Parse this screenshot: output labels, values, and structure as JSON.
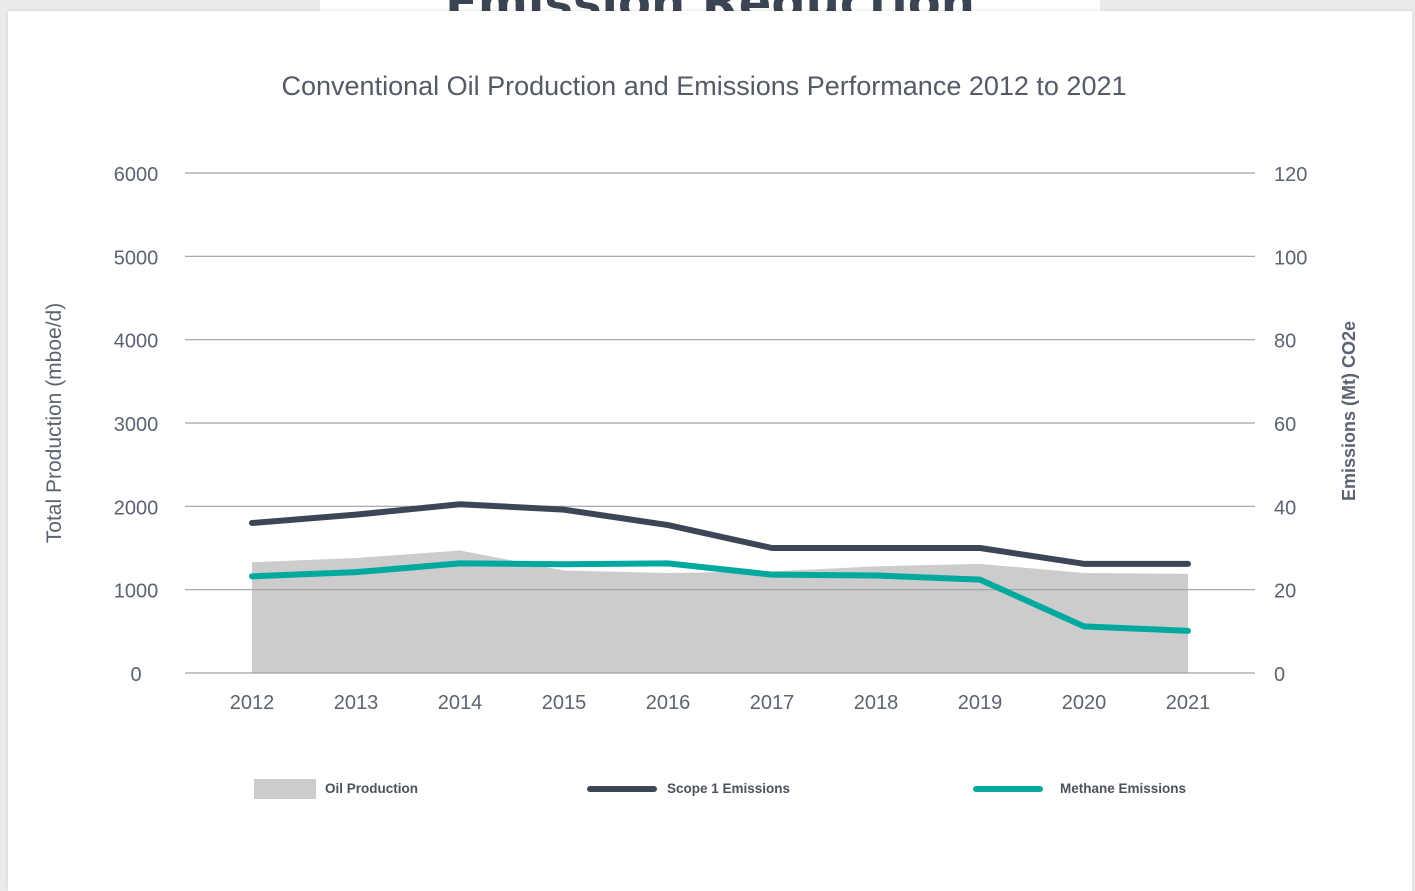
{
  "page": {
    "heading": "Emission Reduction"
  },
  "chart_data": {
    "type": "area",
    "title": "Conventional Oil Production and Emissions Performance 2012 to 2021",
    "ylabel": "Total Production (mboe/d)",
    "y2label": "Emissions (Mt) CO2e",
    "categories": [
      "2012",
      "2013",
      "2014",
      "2015",
      "2016",
      "2017",
      "2018",
      "2019",
      "2020",
      "2021"
    ],
    "ylim": [
      0,
      6000
    ],
    "y2lim": [
      0,
      120
    ],
    "yticks": [
      0,
      1000,
      2000,
      3000,
      4000,
      5000,
      6000
    ],
    "y2ticks": [
      0,
      20,
      40,
      60,
      80,
      100,
      120
    ],
    "grid": true,
    "legend_position": "bottom",
    "series": [
      {
        "name": "Oil Production",
        "type": "area",
        "axis": "left",
        "color": "#cccccc",
        "values": [
          1330,
          1380,
          1470,
          1230,
          1200,
          1220,
          1280,
          1310,
          1200,
          1190
        ]
      },
      {
        "name": "Scope 1 Emissions",
        "type": "line",
        "axis": "right",
        "color": "#3d4656",
        "values": [
          36,
          38,
          40.5,
          39.2,
          35.5,
          30,
          30,
          30,
          26.2,
          26.2
        ]
      },
      {
        "name": "Methane Emissions",
        "type": "line",
        "axis": "right",
        "color": "#00a99d",
        "values": [
          23.2,
          24.2,
          26.3,
          26.1,
          26.3,
          23.6,
          23.4,
          22.4,
          11.2,
          10.1
        ]
      }
    ]
  }
}
